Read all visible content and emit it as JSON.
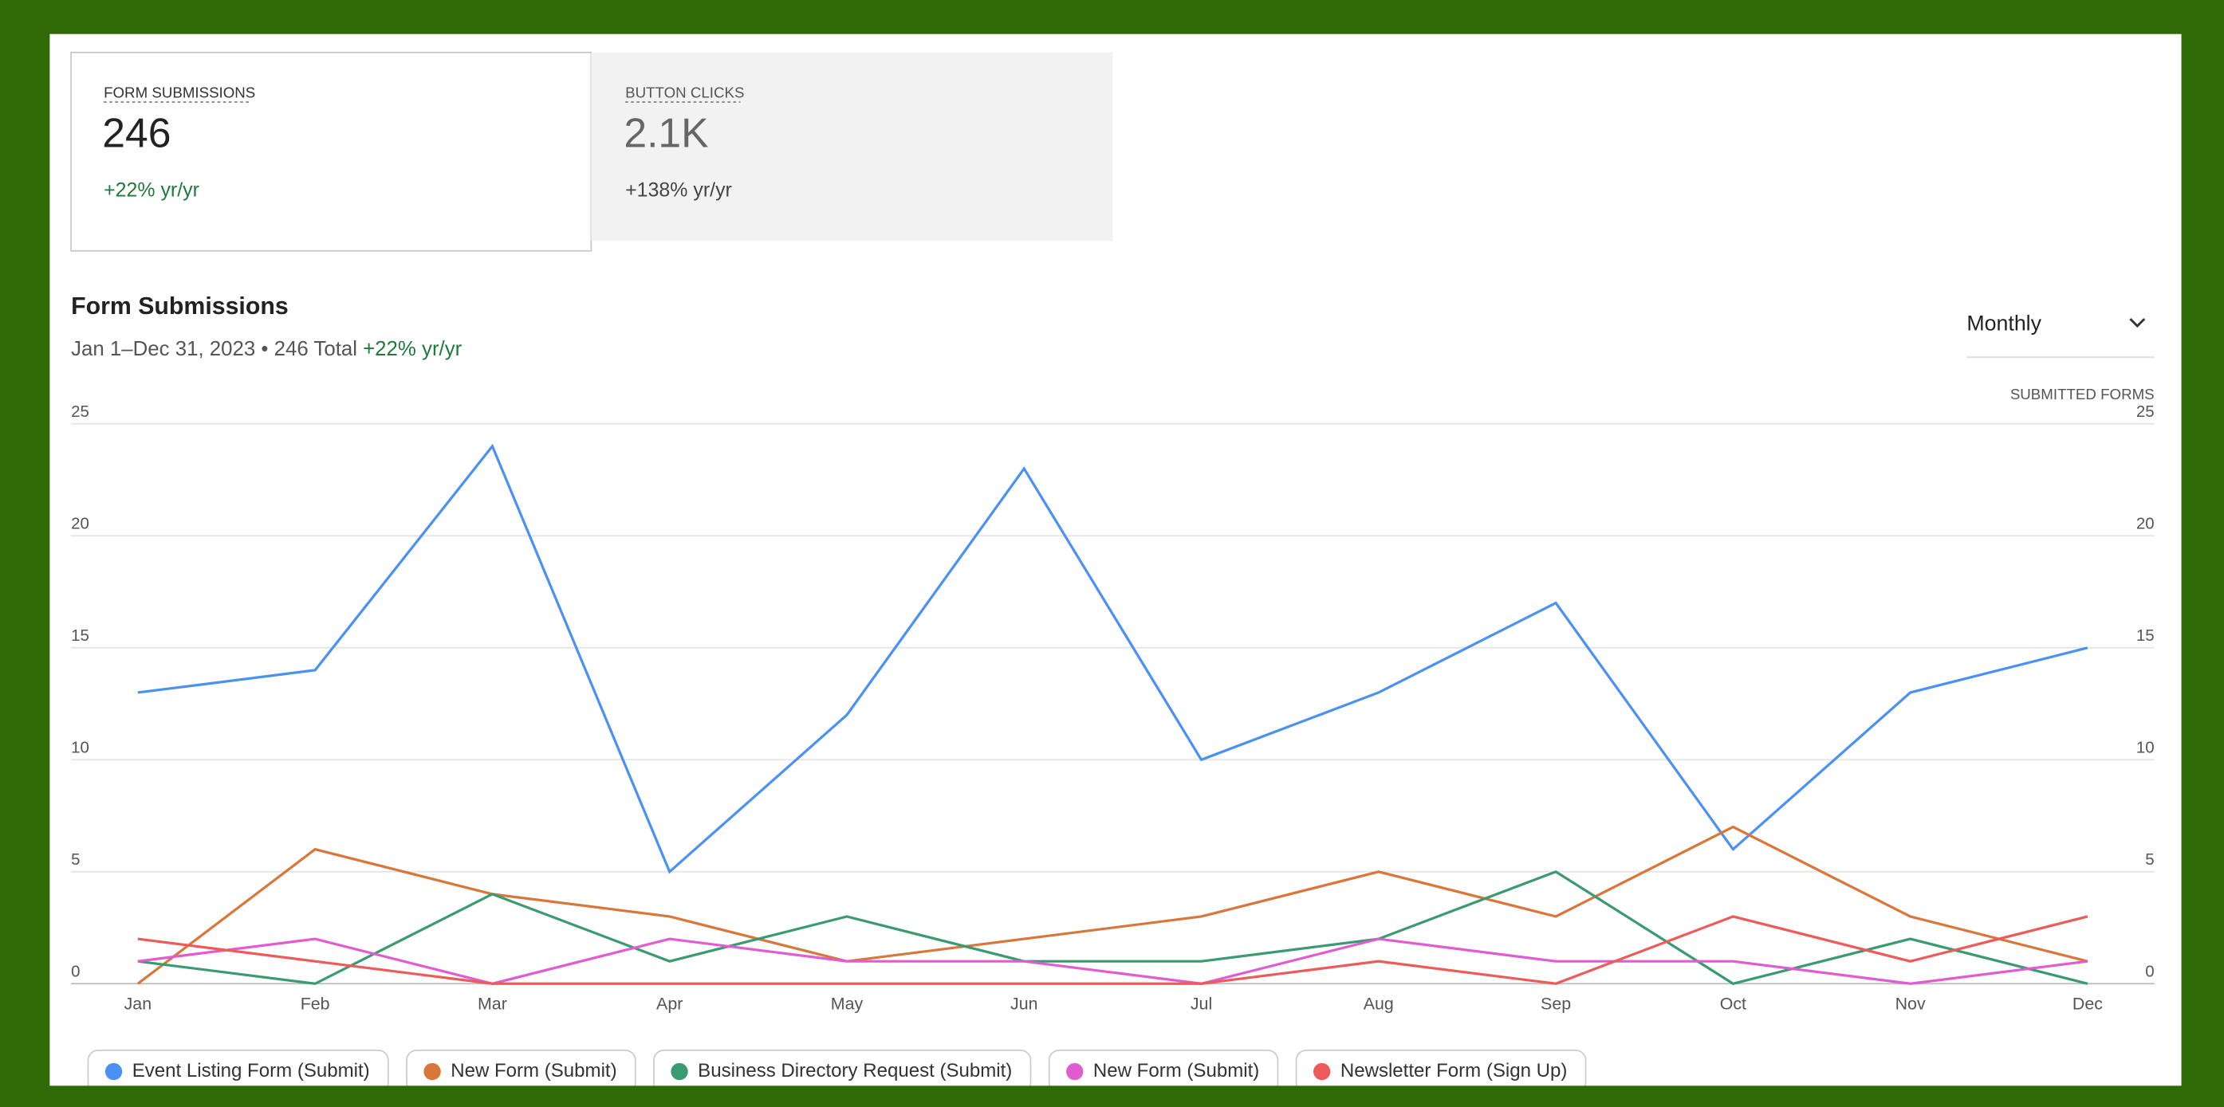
{
  "tiles": [
    {
      "label": "FORM SUBMISSIONS",
      "value": "246",
      "change": "+22% yr/yr"
    },
    {
      "label": "BUTTON CLICKS",
      "value": "2.1K",
      "change": "+138% yr/yr"
    }
  ],
  "chart_header": {
    "period": "Jan 1–Dec 31, 2023 • 246 Total",
    "change": "+22% yr/yr",
    "interval": "Monthly"
  },
  "chart_data": {
    "type": "line",
    "title": "Form Submissions",
    "y2_label": "SUBMITTED FORMS",
    "categories": [
      "Jan",
      "Feb",
      "Mar",
      "Apr",
      "May",
      "Jun",
      "Jul",
      "Aug",
      "Sep",
      "Oct",
      "Nov",
      "Dec"
    ],
    "series": [
      {
        "name": "Event Listing Form (Submit)",
        "color": "#4a90f5",
        "values": [
          13,
          14,
          24,
          5,
          12,
          23,
          10,
          13,
          17,
          6,
          13,
          15
        ]
      },
      {
        "name": "New Form (Submit)",
        "color": "#d9773a",
        "values": [
          0,
          6,
          4,
          3,
          1,
          2,
          3,
          5,
          3,
          7,
          3,
          1
        ]
      },
      {
        "name": "Business Directory Request (Submit)",
        "color": "#3a9a70",
        "values": [
          1,
          0,
          4,
          1,
          3,
          1,
          1,
          2,
          5,
          0,
          2,
          0
        ]
      },
      {
        "name": "New Form (Submit)",
        "color": "#e05cd0",
        "values": [
          1,
          2,
          0,
          2,
          1,
          1,
          0,
          2,
          1,
          1,
          0,
          1
        ]
      },
      {
        "name": "Newsletter Form (Sign Up)",
        "color": "#ee5a5a",
        "values": [
          2,
          1,
          0,
          0,
          0,
          0,
          0,
          1,
          0,
          3,
          1,
          3
        ]
      }
    ],
    "ylim": [
      0,
      25
    ],
    "yticks": [
      0,
      5,
      10,
      15,
      20,
      25
    ],
    "y2lim": [
      0,
      25
    ],
    "y2ticks": [
      0,
      5,
      10,
      15,
      20,
      25
    ],
    "grid": true
  }
}
